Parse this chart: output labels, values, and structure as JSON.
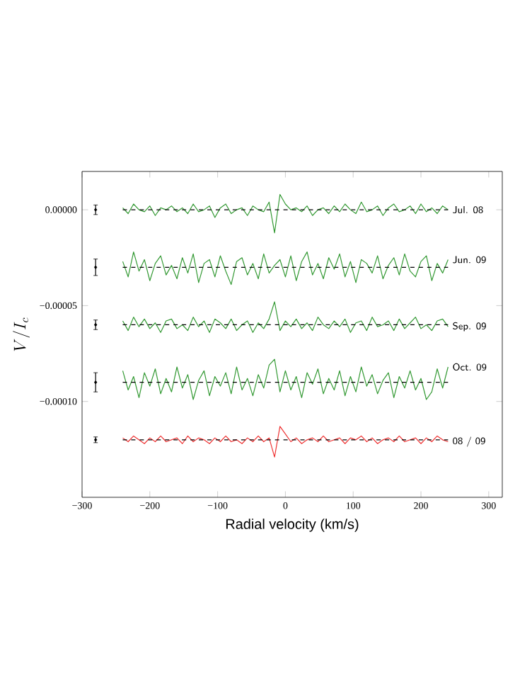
{
  "chart_data": {
    "type": "line",
    "xlabel": "Radial velocity (km/s)",
    "ylabel": "V/I_c",
    "xlim": [
      -300,
      320
    ],
    "ylim": [
      -0.00015,
      2e-05
    ],
    "xticks": [
      {
        "value": -300,
        "label": "−300"
      },
      {
        "value": -200,
        "label": "−200"
      },
      {
        "value": -100,
        "label": "−100"
      },
      0,
      100,
      200,
      300
    ],
    "yticks": [
      {
        "value": 0,
        "label": "0.00000"
      },
      {
        "value": -5e-05,
        "label": "−0.00005"
      },
      {
        "value": -0.0001,
        "label": "−0.00010"
      }
    ],
    "grid": false,
    "x": [
      -240,
      -232,
      -224,
      -216,
      -208,
      -200,
      -192,
      -184,
      -176,
      -168,
      -160,
      -152,
      -144,
      -136,
      -128,
      -120,
      -112,
      -104,
      -96,
      -88,
      -80,
      -72,
      -64,
      -56,
      -48,
      -40,
      -32,
      -24,
      -16,
      -8,
      0,
      8,
      16,
      24,
      32,
      40,
      48,
      56,
      64,
      72,
      80,
      88,
      96,
      104,
      112,
      120,
      128,
      136,
      144,
      152,
      160,
      168,
      176,
      184,
      192,
      200,
      208,
      216,
      224,
      232,
      240
    ],
    "series": [
      {
        "name": "Jul. 08",
        "color": "#339933",
        "values": [
          1e-06,
          -2e-06,
          3e-06,
          0,
          -1e-06,
          2e-06,
          -3e-06,
          1e-06,
          0,
          2e-06,
          -1e-06,
          1e-06,
          -2e-06,
          3e-06,
          -1e-06,
          0,
          2e-06,
          -4e-06,
          1e-06,
          3e-06,
          -2e-06,
          0,
          1e-06,
          -3e-06,
          2e-06,
          0,
          -1e-06,
          4e-06,
          -1.2e-05,
          8e-06,
          3e-06,
          0,
          1e-06,
          -1e-06,
          2e-06,
          -3e-06,
          0,
          1e-06,
          -2e-06,
          2e-06,
          -1e-06,
          3e-06,
          0,
          -2e-06,
          4e-06,
          -1e-06,
          0,
          2e-06,
          -3e-06,
          1e-06,
          3e-06,
          -1e-06,
          0,
          2e-06,
          -2e-06,
          3e-06,
          -1e-06,
          1e-06,
          -2e-06,
          2e-06,
          0
        ]
      },
      {
        "name": "Jun. 09",
        "color": "#339933",
        "values": [
          -2.7e-05,
          -3.5e-05,
          -2.2e-05,
          -3.2e-05,
          -2.6e-05,
          -3.7e-05,
          -2.8e-05,
          -2.4e-05,
          -3.4e-05,
          -2.9e-05,
          -3.6e-05,
          -2.5e-05,
          -3.3e-05,
          -2.3e-05,
          -3.8e-05,
          -2.8e-05,
          -2.6e-05,
          -3.5e-05,
          -2.4e-05,
          -3.2e-05,
          -3.9e-05,
          -2.7e-05,
          -2.5e-05,
          -3.4e-05,
          -2.8e-05,
          -3.6e-05,
          -2.3e-05,
          -3.3e-05,
          -2.9e-05,
          -2.6e-05,
          -3.5e-05,
          -2.4e-05,
          -3.7e-05,
          -2.7e-05,
          -2.2e-05,
          -3.4e-05,
          -2.8e-05,
          -3.6e-05,
          -2.5e-05,
          -3.1e-05,
          -2.3e-05,
          -3.5e-05,
          -2.7e-05,
          -3.8e-05,
          -2.6e-05,
          -2.8e-05,
          -3.3e-05,
          -2.4e-05,
          -3.6e-05,
          -2.9e-05,
          -2.5e-05,
          -3.4e-05,
          -2.3e-05,
          -3.2e-05,
          -3.5e-05,
          -2.7e-05,
          -2.4e-05,
          -3.7e-05,
          -2.8e-05,
          -3.3e-05,
          -2.6e-05
        ]
      },
      {
        "name": "Sep. 09",
        "color": "#339933",
        "values": [
          -5.8e-05,
          -6.3e-05,
          -5.6e-05,
          -6.1e-05,
          -5.7e-05,
          -6.2e-05,
          -5.9e-05,
          -6.4e-05,
          -5.8e-05,
          -5.7e-05,
          -6.2e-05,
          -6e-05,
          -6.3e-05,
          -5.6e-05,
          -6.1e-05,
          -5.8e-05,
          -6.4e-05,
          -5.7e-05,
          -5.9e-05,
          -6.2e-05,
          -5.7e-05,
          -6.3e-05,
          -6e-05,
          -5.8e-05,
          -6.4e-05,
          -5.9e-05,
          -6.2e-05,
          -5.7e-05,
          -4.8e-05,
          -6.3e-05,
          -5.8e-05,
          -6.1e-05,
          -5.7e-05,
          -6.2e-05,
          -5.9e-05,
          -6.3e-05,
          -5.6e-05,
          -6e-05,
          -6.2e-05,
          -5.8e-05,
          -6.1e-05,
          -5.7e-05,
          -6.4e-05,
          -5.9e-05,
          -5.8e-05,
          -6.3e-05,
          -5.6e-05,
          -6.1e-05,
          -6e-05,
          -5.8e-05,
          -6.3e-05,
          -5.7e-05,
          -6.2e-05,
          -5.9e-05,
          -5.6e-05,
          -6.2e-05,
          -6e-05,
          -6.3e-05,
          -5.8e-05,
          -5.7e-05,
          -6.1e-05
        ]
      },
      {
        "name": "Oct. 09",
        "color": "#339933",
        "values": [
          -8.4e-05,
          -9.4e-05,
          -8.7e-05,
          -9.8e-05,
          -8.5e-05,
          -9.2e-05,
          -8.3e-05,
          -9.6e-05,
          -8.8e-05,
          -9.5e-05,
          -8.2e-05,
          -9.3e-05,
          -8.6e-05,
          -9.9e-05,
          -8.9e-05,
          -8.4e-05,
          -9.7e-05,
          -8.7e-05,
          -9.2e-05,
          -8.5e-05,
          -9.6e-05,
          -8.2e-05,
          -9.4e-05,
          -8.8e-05,
          -9.7e-05,
          -8.6e-05,
          -9.3e-05,
          -8.1e-05,
          -7.8e-05,
          -9.5e-05,
          -8.4e-05,
          -9.4e-05,
          -8.7e-05,
          -9.8e-05,
          -8.5e-05,
          -9.1e-05,
          -8.3e-05,
          -9.6e-05,
          -8.8e-05,
          -9.4e-05,
          -8.4e-05,
          -9.7e-05,
          -8.7e-05,
          -9.5e-05,
          -8.2e-05,
          -9.2e-05,
          -8.6e-05,
          -9.6e-05,
          -8.9e-05,
          -8.5e-05,
          -9.8e-05,
          -8.7e-05,
          -9.3e-05,
          -8.4e-05,
          -9.4e-05,
          -8.8e-05,
          -9.9e-05,
          -9.5e-05,
          -8.3e-05,
          -9.3e-05,
          -8.2e-05
        ]
      },
      {
        "name": "08 / 09",
        "color": "#ee3333",
        "values": [
          -0.000119,
          -0.000121,
          -0.000118,
          -0.00012,
          -0.000122,
          -0.000119,
          -0.000121,
          -0.000118,
          -0.000121,
          -0.00012,
          -0.000119,
          -0.000122,
          -0.000118,
          -0.000121,
          -0.000119,
          -0.00012,
          -0.000122,
          -0.000119,
          -0.000121,
          -0.000118,
          -0.000121,
          -0.00012,
          -0.000122,
          -0.000119,
          -0.000121,
          -0.000118,
          -0.000121,
          -0.000119,
          -0.000129,
          -0.000113,
          -0.000117,
          -0.000121,
          -0.000119,
          -0.000122,
          -0.00012,
          -0.000119,
          -0.000121,
          -0.000118,
          -0.000121,
          -0.00012,
          -0.000119,
          -0.000122,
          -0.000119,
          -0.00012,
          -0.000118,
          -0.000121,
          -0.000119,
          -0.000122,
          -0.00012,
          -0.000119,
          -0.000121,
          -0.000118,
          -0.000121,
          -0.00012,
          -0.000119,
          -0.000122,
          -0.000119,
          -0.000121,
          -0.000118,
          -0.00012,
          -0.000121
        ]
      },
      {
        "color": "#000000",
        "line_style": "dashed",
        "x": [
          -240,
          240
        ],
        "values": [
          0,
          0
        ]
      },
      {
        "color": "#000000",
        "line_style": "dashed",
        "x": [
          -240,
          240
        ],
        "values": [
          -3e-05,
          -3e-05
        ]
      },
      {
        "color": "#000000",
        "line_style": "dashed",
        "x": [
          -240,
          240
        ],
        "values": [
          -6e-05,
          -6e-05
        ]
      },
      {
        "color": "#000000",
        "line_style": "dashed",
        "x": [
          -240,
          240
        ],
        "values": [
          -9e-05,
          -9e-05
        ]
      },
      {
        "color": "#000000",
        "line_style": "dashed",
        "x": [
          -240,
          240
        ],
        "values": [
          -0.00012,
          -0.00012
        ]
      },
      {
        "type": "scatter",
        "color": "#000000",
        "x": [
          -280,
          -280,
          -280,
          -280,
          -280
        ],
        "values": [
          0,
          -3e-05,
          -6e-05,
          -9e-05,
          -0.00012
        ],
        "errors": [
          2.5e-06,
          4.3e-06,
          2.5e-06,
          5e-06,
          1.5e-06
        ]
      }
    ]
  }
}
